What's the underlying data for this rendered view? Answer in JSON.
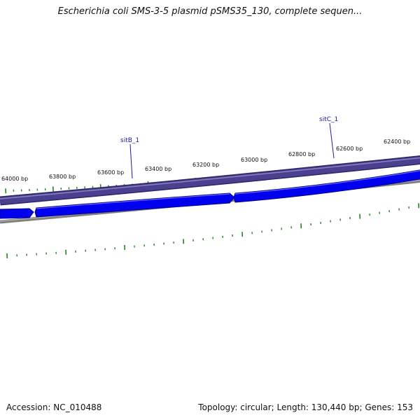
{
  "title": "Escherichia coli SMS-3-5 plasmid pSMS35_130, complete sequen...",
  "footer": {
    "accession": "Accession: NC_010488",
    "summary": "Topology: circular; Length: 130,440 bp; Genes: 153"
  },
  "ruler": {
    "labels": [
      "64000 bp",
      "63800 bp",
      "63600 bp",
      "63400 bp",
      "63200 bp",
      "63000 bp",
      "62800 bp",
      "62600 bp",
      "62400 bp"
    ]
  },
  "genes": [
    {
      "label": "sitB_1"
    },
    {
      "label": "sitC_1"
    }
  ],
  "colors": {
    "outer_track": "#4b3f8f",
    "outer_track_edge": "#2e2665",
    "cds": "#0000ee",
    "cds_edge": "#00008a",
    "backbone": "#808080",
    "ticks": "#1f8a1f",
    "gene_label": "#1a1aa0"
  }
}
